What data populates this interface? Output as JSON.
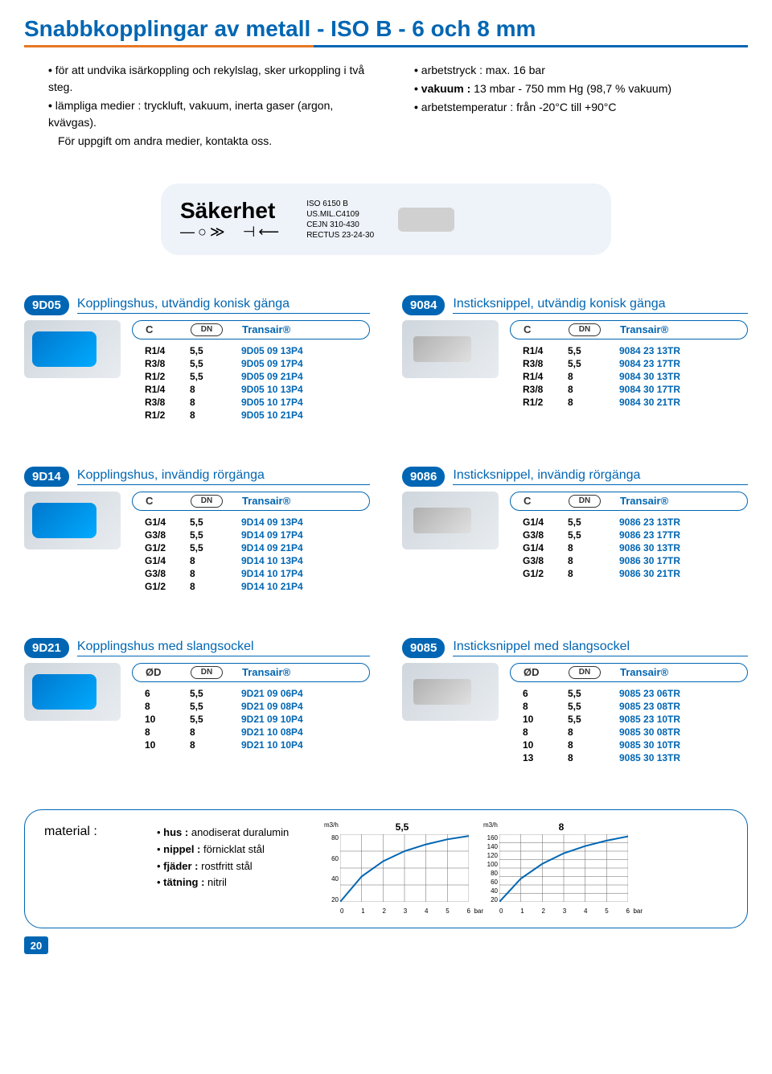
{
  "page": {
    "title": "Snabbkopplingar av metall - ISO B - 6 och 8 mm",
    "number": "20"
  },
  "intro": {
    "left": [
      {
        "text": "för att undvika isärkoppling och rekylslag, sker urkoppling i två steg.",
        "sub": false
      },
      {
        "text": "lämpliga medier : tryckluft, vakuum, inerta gaser (argon, kvävgas).",
        "sub": false
      },
      {
        "text": "För uppgift om andra medier, kontakta oss.",
        "sub": true
      }
    ],
    "right": [
      {
        "text": "arbetstryck : max. 16 bar",
        "sub": false
      },
      {
        "html": "<span class='bold'>vakuum :</span> 13 mbar - 750 mm  Hg (98,7 % vakuum)",
        "sub": false
      },
      {
        "text": "arbetstemperatur : från -20°C till +90°C",
        "sub": false
      }
    ]
  },
  "safety": {
    "title": "Säkerhet",
    "standards": [
      "ISO 6150 B",
      "US.MIL.C4109",
      "CEJN 310-430",
      "RECTUS 23-24-30"
    ]
  },
  "sections": [
    {
      "left": {
        "code": "9D05",
        "title": "Kopplingshus, utvändig konisk gänga",
        "thumbStyle": "blue",
        "head_c1": "C",
        "head_c2": "DN",
        "head_c3": "Transair®",
        "rows": [
          {
            "c1": "R1/4",
            "c2": "5,5",
            "c3": "9D05 09 13P4"
          },
          {
            "c1": "R3/8",
            "c2": "5,5",
            "c3": "9D05 09 17P4"
          },
          {
            "c1": "R1/2",
            "c2": "5,5",
            "c3": "9D05 09 21P4"
          },
          {
            "c1": "R1/4",
            "c2": "8",
            "c3": "9D05 10 13P4"
          },
          {
            "c1": "R3/8",
            "c2": "8",
            "c3": "9D05 10 17P4"
          },
          {
            "c1": "R1/2",
            "c2": "8",
            "c3": "9D05 10 21P4"
          }
        ]
      },
      "right": {
        "code": "9084",
        "title": "Insticksnippel, utvändig konisk gänga",
        "thumbStyle": "metal",
        "head_c1": "C",
        "head_c2": "DN",
        "head_c3": "Transair®",
        "rows": [
          {
            "c1": "R1/4",
            "c2": "5,5",
            "c3": "9084 23 13TR"
          },
          {
            "c1": "R3/8",
            "c2": "5,5",
            "c3": "9084 23 17TR"
          },
          {
            "c1": "R1/4",
            "c2": "8",
            "c3": "9084 30 13TR"
          },
          {
            "c1": "R3/8",
            "c2": "8",
            "c3": "9084 30 17TR"
          },
          {
            "c1": "R1/2",
            "c2": "8",
            "c3": "9084 30 21TR"
          }
        ]
      }
    },
    {
      "left": {
        "code": "9D14",
        "title": "Kopplingshus, invändig rörgänga",
        "thumbStyle": "blue",
        "head_c1": "C",
        "head_c2": "DN",
        "head_c3": "Transair®",
        "rows": [
          {
            "c1": "G1/4",
            "c2": "5,5",
            "c3": "9D14 09 13P4"
          },
          {
            "c1": "G3/8",
            "c2": "5,5",
            "c3": "9D14 09 17P4"
          },
          {
            "c1": "G1/2",
            "c2": "5,5",
            "c3": "9D14 09 21P4"
          },
          {
            "c1": "G1/4",
            "c2": "8",
            "c3": "9D14 10 13P4"
          },
          {
            "c1": "G3/8",
            "c2": "8",
            "c3": "9D14 10 17P4"
          },
          {
            "c1": "G1/2",
            "c2": "8",
            "c3": "9D14 10 21P4"
          }
        ]
      },
      "right": {
        "code": "9086",
        "title": "Insticksnippel, invändig rörgänga",
        "thumbStyle": "metal",
        "head_c1": "C",
        "head_c2": "DN",
        "head_c3": "Transair®",
        "rows": [
          {
            "c1": "G1/4",
            "c2": "5,5",
            "c3": "9086 23 13TR"
          },
          {
            "c1": "G3/8",
            "c2": "5,5",
            "c3": "9086 23 17TR"
          },
          {
            "c1": "G1/4",
            "c2": "8",
            "c3": "9086 30 13TR"
          },
          {
            "c1": "G3/8",
            "c2": "8",
            "c3": "9086 30 17TR"
          },
          {
            "c1": "G1/2",
            "c2": "8",
            "c3": "9086 30 21TR"
          }
        ]
      }
    },
    {
      "left": {
        "code": "9D21",
        "title": "Kopplingshus med slangsockel",
        "thumbStyle": "blue",
        "head_c1": "ØD",
        "head_c2": "DN",
        "head_c3": "Transair®",
        "rows": [
          {
            "c1": "6",
            "c2": "5,5",
            "c3": "9D21 09 06P4"
          },
          {
            "c1": "8",
            "c2": "5,5",
            "c3": "9D21 09 08P4"
          },
          {
            "c1": "10",
            "c2": "5,5",
            "c3": "9D21 09 10P4"
          },
          {
            "c1": "8",
            "c2": "8",
            "c3": "9D21 10 08P4"
          },
          {
            "c1": "10",
            "c2": "8",
            "c3": "9D21 10 10P4"
          }
        ]
      },
      "right": {
        "code": "9085",
        "title": "Insticksnippel med slangsockel",
        "thumbStyle": "metal",
        "head_c1": "ØD",
        "head_c2": "DN",
        "head_c3": "Transair®",
        "rows": [
          {
            "c1": "6",
            "c2": "5,5",
            "c3": "9085 23 06TR"
          },
          {
            "c1": "8",
            "c2": "5,5",
            "c3": "9085 23 08TR"
          },
          {
            "c1": "10",
            "c2": "5,5",
            "c3": "9085 23 10TR"
          },
          {
            "c1": "8",
            "c2": "8",
            "c3": "9085 30 08TR"
          },
          {
            "c1": "10",
            "c2": "8",
            "c3": "9085 30 10TR"
          },
          {
            "c1": "13",
            "c2": "8",
            "c3": "9085 30 13TR"
          }
        ]
      }
    }
  ],
  "material": {
    "heading": "material :",
    "items": [
      {
        "label": "hus :",
        "value": "anodiserat duralumin"
      },
      {
        "label": "nippel :",
        "value": "förnicklat stål"
      },
      {
        "label": "fjäder :",
        "value": "rostfritt stål"
      },
      {
        "label": "tätning :",
        "value": "nitril"
      }
    ]
  },
  "charts": [
    {
      "title": "5,5",
      "y_unit": "m3/h",
      "x_unit": "bar",
      "xlim": [
        0,
        6
      ],
      "ylim": [
        0,
        80
      ],
      "xticks": [
        0,
        1,
        2,
        3,
        4,
        5,
        6
      ],
      "yticks": [
        20,
        40,
        60,
        80
      ],
      "grid_color": "#666666",
      "line_color": "#0066b3",
      "line_width": 2,
      "points": [
        [
          0,
          0
        ],
        [
          1,
          30
        ],
        [
          2,
          48
        ],
        [
          3,
          60
        ],
        [
          4,
          68
        ],
        [
          5,
          74
        ],
        [
          6,
          78
        ]
      ]
    },
    {
      "title": "8",
      "y_unit": "m3/h",
      "x_unit": "bar",
      "xlim": [
        0,
        6
      ],
      "ylim": [
        0,
        160
      ],
      "xticks": [
        0,
        1,
        2,
        3,
        4,
        5,
        6
      ],
      "yticks": [
        20,
        40,
        60,
        80,
        100,
        120,
        140,
        160
      ],
      "grid_color": "#666666",
      "line_color": "#0066b3",
      "line_width": 2,
      "points": [
        [
          0,
          0
        ],
        [
          1,
          55
        ],
        [
          2,
          90
        ],
        [
          3,
          115
        ],
        [
          4,
          132
        ],
        [
          5,
          145
        ],
        [
          6,
          155
        ]
      ]
    }
  ]
}
